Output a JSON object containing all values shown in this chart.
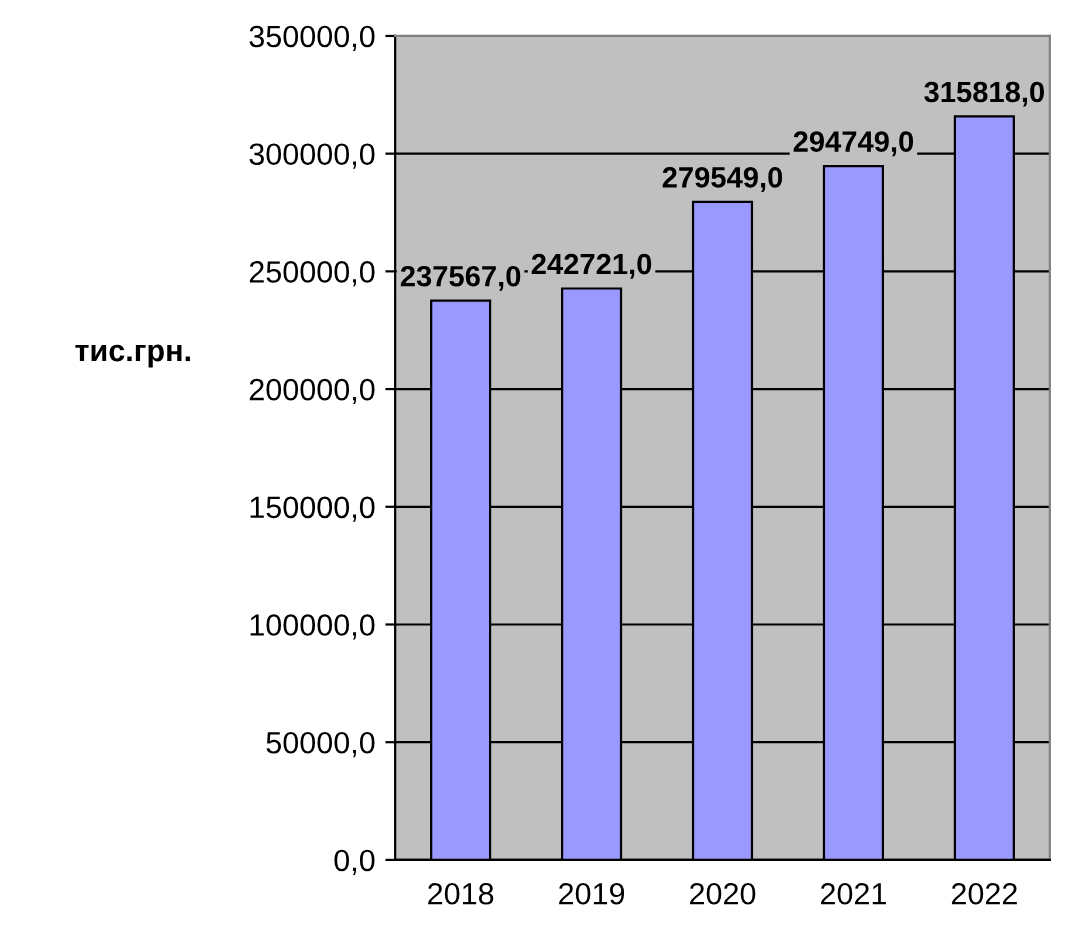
{
  "chart_data": {
    "type": "bar",
    "ylabel": "тис.грн.",
    "categories": [
      "2018",
      "2019",
      "2020",
      "2021",
      "2022"
    ],
    "values": [
      237567.0,
      242721.0,
      279549.0,
      294749.0,
      315818.0
    ],
    "value_labels": [
      "237567,0",
      "242721,0",
      "279549,0",
      "294749,0",
      "315818,0"
    ],
    "color": "#9999ff",
    "ylim": [
      0,
      350000
    ],
    "yticks": [
      {
        "value": 0,
        "label": "0,0"
      },
      {
        "value": 50000,
        "label": "50000,0"
      },
      {
        "value": 100000,
        "label": "100000,0"
      },
      {
        "value": 150000,
        "label": "150000,0"
      },
      {
        "value": 200000,
        "label": "200000,0"
      },
      {
        "value": 250000,
        "label": "250000,0"
      },
      {
        "value": 300000,
        "label": "300000,0"
      },
      {
        "value": 350000,
        "label": "350000,0"
      }
    ],
    "grid": "y",
    "legend": false
  }
}
